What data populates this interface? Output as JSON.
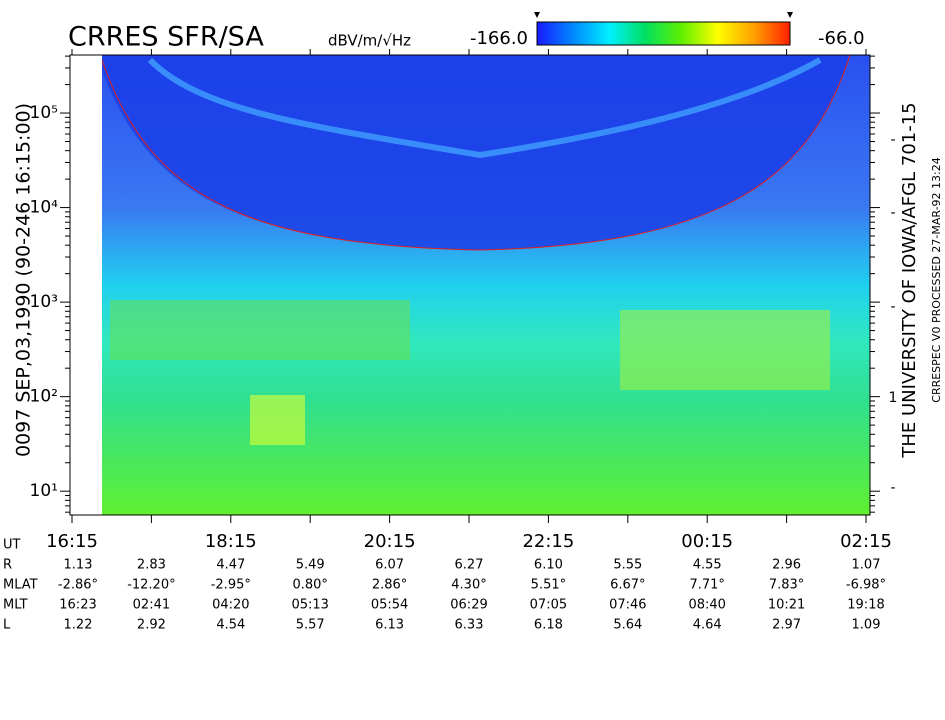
{
  "chart_data": {
    "type": "spectrogram",
    "title": "CRRES SFR/SA",
    "colorbar_units": "dBV/m/√Hz",
    "zlim": [
      -166,
      -66
    ],
    "zticks": [
      {
        "value": -166,
        "label": "-166.0"
      },
      {
        "value": -66,
        "label": "-66.0"
      }
    ],
    "colormap": [
      "#1a1aff",
      "#0088ff",
      "#00f0ff",
      "#00e060",
      "#60f000",
      "#ffff00",
      "#ffa000",
      "#ff2000"
    ],
    "left_label": "0097  SEP,03,1990  (90-246 16:15:00)",
    "right_label": "THE UNIVERSITY OF IOWA/AFGL 701-15",
    "right_sublabel": "CRRESPEC V0   PROCESSED 27-MAR-92   13:24",
    "log_y": true,
    "ylim": [
      5.6,
      411000
    ],
    "yticks": [
      {
        "value": 10,
        "label": "10¹"
      },
      {
        "value": 100,
        "label": "10²"
      },
      {
        "value": 1000,
        "label": "10³"
      },
      {
        "value": 10000,
        "label": "10⁴"
      },
      {
        "value": 100000,
        "label": "10⁵"
      }
    ],
    "right_axis_labels": [
      "-",
      "-",
      "-",
      "1",
      "-"
    ],
    "x_label": "UT",
    "categories": [
      "16:15",
      null,
      "18:15",
      null,
      "20:15",
      null,
      "22:15",
      null,
      "00:15",
      null,
      "02:15"
    ],
    "ephemeris": [
      {
        "name": "R",
        "values": [
          "1.13",
          "2.83",
          "4.47",
          "5.49",
          "6.07",
          "6.27",
          "6.10",
          "5.55",
          "4.55",
          "2.96",
          "1.07"
        ]
      },
      {
        "name": "MLAT",
        "values": [
          "-2.86°",
          "-12.20°",
          "-2.95°",
          "0.80°",
          "2.86°",
          "4.30°",
          "5.51°",
          "6.67°",
          "7.71°",
          "7.83°",
          "-6.98°"
        ]
      },
      {
        "name": "MLT",
        "values": [
          "16:23",
          "02:41",
          "04:20",
          "05:13",
          "05:54",
          "06:29",
          "07:05",
          "07:46",
          "08:40",
          "10:21",
          "19:18"
        ]
      },
      {
        "name": "L",
        "values": [
          "1.22",
          "2.92",
          "4.54",
          "5.57",
          "6.13",
          "6.33",
          "6.18",
          "5.64",
          "4.64",
          "2.97",
          "1.09"
        ]
      }
    ]
  }
}
